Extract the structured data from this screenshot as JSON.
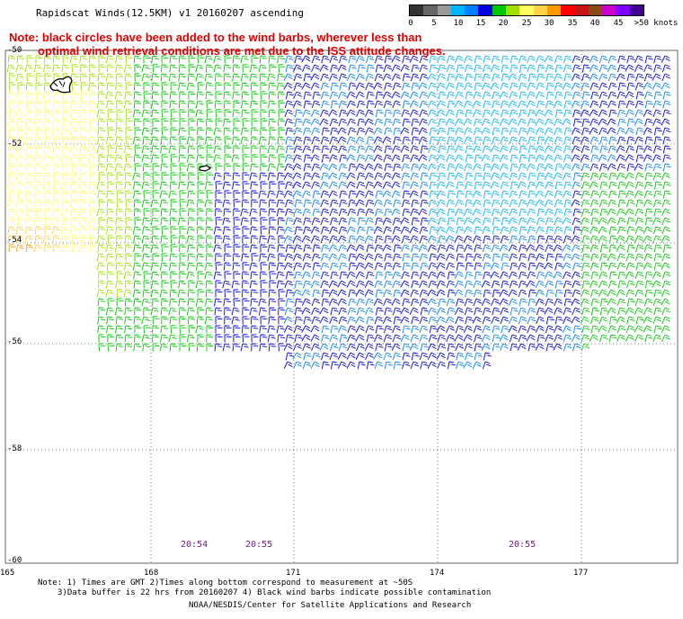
{
  "header": {
    "title": "Rapidscat Winds(12.5KM) v1 20160207 ascending",
    "note_line1": "Note: black circles have been added to the wind barbs, wherever less than",
    "note_line2": "optimal wind retrieval conditions are met due to the ISS attitude changes."
  },
  "legend": {
    "labels": [
      "0",
      "5",
      "10",
      "15",
      "20",
      "25",
      "30",
      "35",
      "40",
      "45",
      ">50 knots"
    ],
    "colors": [
      "#333333",
      "#666666",
      "#999999",
      "#00b4ff",
      "#0080ff",
      "#0000e0",
      "#00c800",
      "#a0e000",
      "#ffff60",
      "#ffd24a",
      "#ff9a00",
      "#ff0000",
      "#c81414",
      "#8b4a14",
      "#cc00cc",
      "#8000ff",
      "#400090"
    ]
  },
  "map": {
    "lat_labels": [
      "-50",
      "-52",
      "-54",
      "-56",
      "-58",
      "-60"
    ],
    "lon_labels": [
      "165",
      "168",
      "171",
      "174",
      "177"
    ],
    "time_labels": [
      "20:54",
      "20:55",
      "20:55"
    ],
    "icons": [
      "island-outline-icon",
      "small-island-icon"
    ]
  },
  "footer": {
    "line1": "Note: 1) Times are GMT 2)Times along bottom correspond to measurement at ~50S",
    "line2": "3)Data buffer is 22 hrs from 20160207 4) Black wind barbs indicate possible contamination",
    "line3": "NOAA/NESDIS/Center for Satellite Applications and Research"
  }
}
